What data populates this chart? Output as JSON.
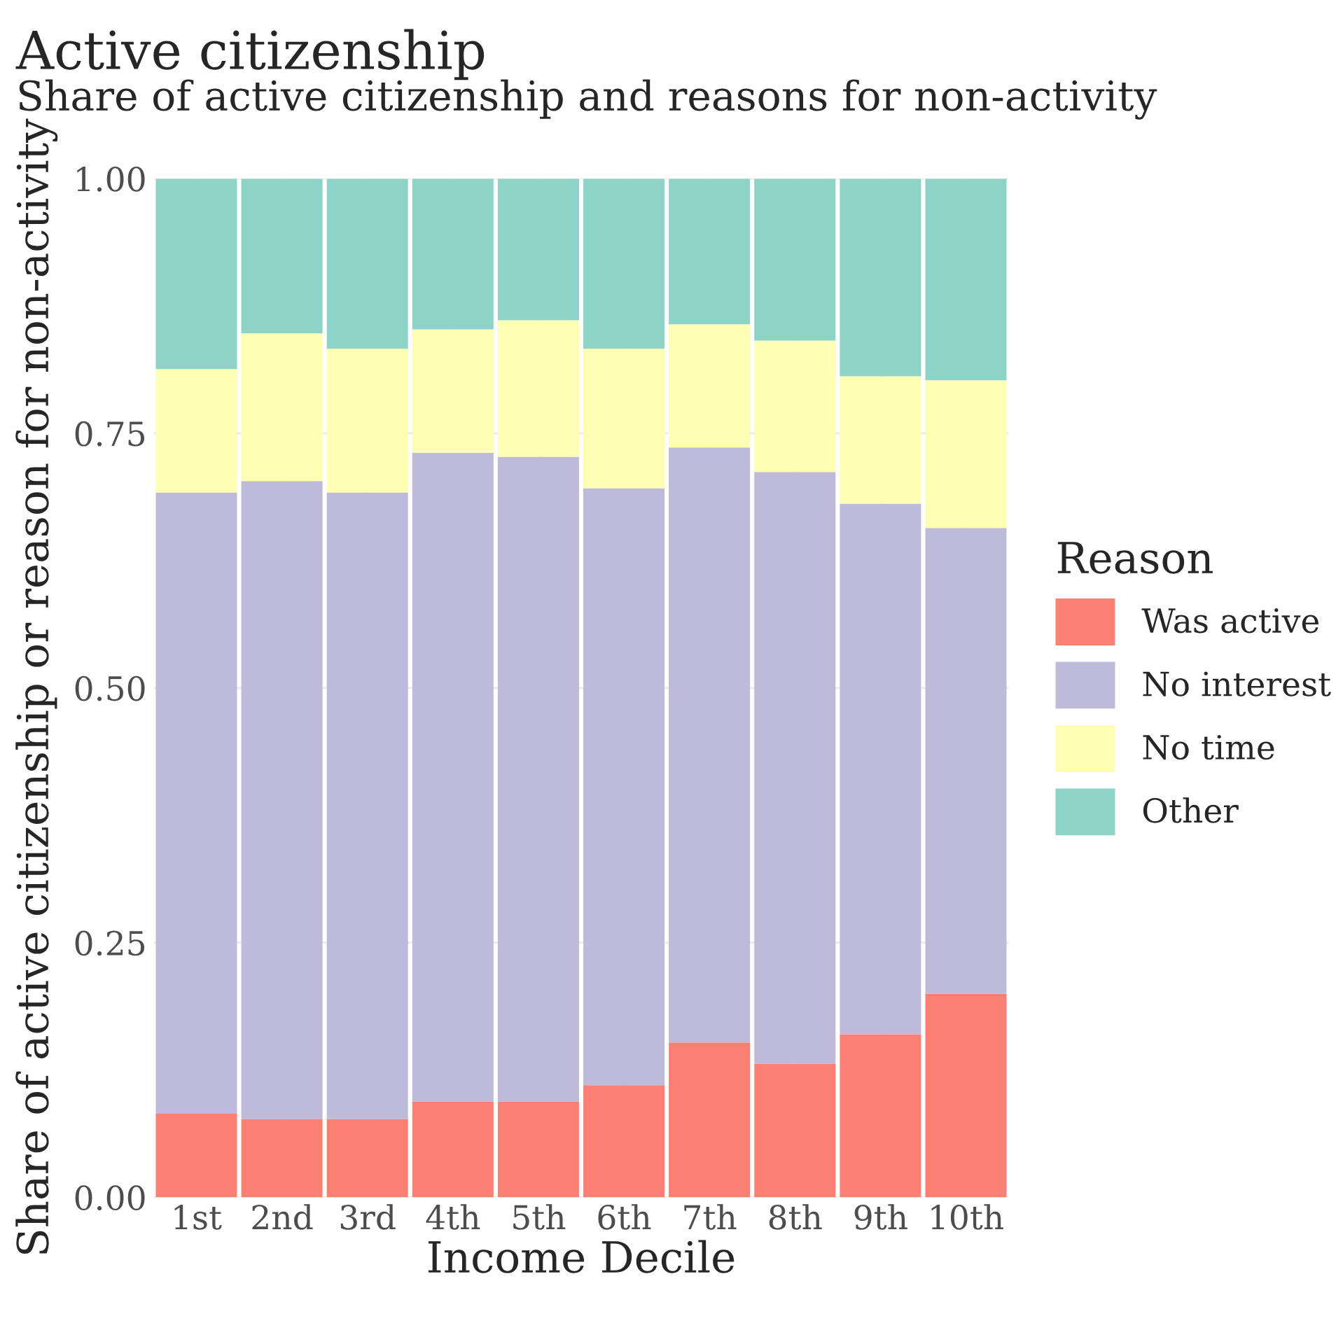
{
  "chart_data": {
    "type": "bar",
    "title": "Active citizenship",
    "subtitle": "Share of active citizenship and reasons for non-activity",
    "xlabel": "Income Decile",
    "ylabel": "Share of active citizenship or reason for non-activity",
    "legend_title": "Reason",
    "legend": "right",
    "stacked": true,
    "grid": true,
    "categories": [
      "1st",
      "2nd",
      "3rd",
      "4th",
      "5th",
      "6th",
      "7th",
      "8th",
      "9th",
      "10th"
    ],
    "ylim": [
      0,
      1
    ],
    "yticks": [
      {
        "value": 0,
        "label": "0.00"
      },
      {
        "value": 0.25,
        "label": "0.25"
      },
      {
        "value": 0.5,
        "label": "0.50"
      },
      {
        "value": 0.75,
        "label": "0.75"
      },
      {
        "value": 1,
        "label": "1.00"
      }
    ],
    "series": [
      {
        "name": "Was active",
        "color": "#fb8072",
        "values": [
          0.082,
          0.077,
          0.077,
          0.094,
          0.094,
          0.11,
          0.152,
          0.131,
          0.16,
          0.2
        ]
      },
      {
        "name": "No interest",
        "color": "#bebada",
        "values": [
          0.61,
          0.626,
          0.615,
          0.637,
          0.633,
          0.586,
          0.584,
          0.581,
          0.521,
          0.457
        ]
      },
      {
        "name": "No time",
        "color": "#ffffb3",
        "values": [
          0.121,
          0.145,
          0.141,
          0.121,
          0.134,
          0.137,
          0.121,
          0.129,
          0.125,
          0.145
        ]
      },
      {
        "name": "Other",
        "color": "#8dd3c7",
        "values": [
          0.187,
          0.152,
          0.167,
          0.148,
          0.139,
          0.167,
          0.143,
          0.159,
          0.194,
          0.198
        ]
      }
    ]
  }
}
